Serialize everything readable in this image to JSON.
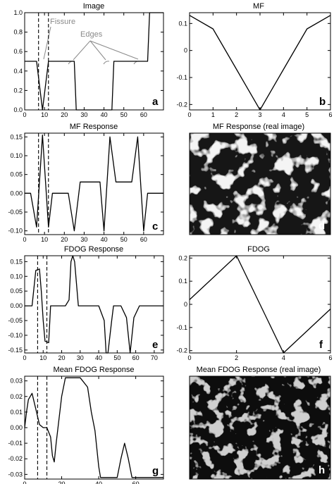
{
  "figure": {
    "annotations": {
      "fissure": "Fissure",
      "edges": "Edges"
    }
  },
  "chart_data": [
    {
      "id": "a",
      "type": "line",
      "title": "Image",
      "letter": "a",
      "xlim": [
        0,
        70
      ],
      "ylim": [
        0,
        1.0
      ],
      "xticks": [
        0,
        10,
        20,
        30,
        40,
        50,
        60
      ],
      "yticks": [
        0.0,
        0.2,
        0.4,
        0.6,
        0.8,
        1.0
      ],
      "ytick_labels": [
        "0.0",
        "0.2",
        "0.4",
        "0.6",
        "0.8",
        "1.0"
      ],
      "vlines": [
        7,
        12
      ],
      "series": [
        {
          "x": [
            0,
            6,
            9,
            12,
            25,
            26,
            44,
            45,
            62,
            63,
            70
          ],
          "y": [
            0.5,
            0.5,
            0,
            0.5,
            0.5,
            0,
            0,
            0.5,
            0.5,
            1.0,
            1.0
          ]
        }
      ]
    },
    {
      "id": "b",
      "type": "line",
      "title": "MF",
      "letter": "b",
      "xlim": [
        0,
        6
      ],
      "ylim": [
        -0.22,
        0.14
      ],
      "xticks": [
        0,
        1,
        2,
        3,
        4,
        5,
        6
      ],
      "yticks": [
        -0.2,
        -0.1,
        0.0,
        0.1
      ],
      "ytick_labels": [
        "-0.2",
        "-0.1",
        "0",
        "0.1"
      ],
      "series": [
        {
          "x": [
            0,
            1,
            2,
            3,
            4,
            5,
            6
          ],
          "y": [
            0.13,
            0.08,
            -0.07,
            -0.22,
            -0.07,
            0.08,
            0.13
          ]
        }
      ]
    },
    {
      "id": "c",
      "type": "line",
      "title": "MF Response",
      "letter": "c",
      "xlim": [
        0,
        70
      ],
      "ylim": [
        -0.11,
        0.16
      ],
      "xticks": [
        0,
        10,
        20,
        30,
        40,
        50,
        60
      ],
      "yticks": [
        -0.1,
        -0.05,
        0.0,
        0.05,
        0.1,
        0.15
      ],
      "ytick_labels": [
        "-0.10",
        "-0.05",
        "0.00",
        "0.05",
        "0.10",
        "0.15"
      ],
      "vlines": [
        7,
        12
      ],
      "series": [
        {
          "x": [
            0,
            3,
            6,
            9,
            12,
            14,
            22,
            25,
            28,
            38,
            40,
            43,
            46,
            54,
            57,
            60,
            62,
            70
          ],
          "y": [
            0,
            0,
            -0.09,
            0.155,
            -0.09,
            0,
            0,
            -0.1,
            0.03,
            0.03,
            -0.1,
            0.15,
            0.03,
            0.03,
            0.15,
            -0.1,
            0,
            0
          ]
        }
      ]
    },
    {
      "id": "d",
      "type": "image",
      "title": "MF Response (real image)",
      "letter": "d"
    },
    {
      "id": "e",
      "type": "line",
      "title": "FDOG Response",
      "letter": "e",
      "xlim": [
        0,
        75
      ],
      "ylim": [
        -0.16,
        0.17
      ],
      "xticks": [
        0,
        10,
        20,
        30,
        40,
        50,
        60,
        70
      ],
      "yticks": [
        -0.15,
        -0.1,
        -0.05,
        0.0,
        0.05,
        0.1,
        0.15
      ],
      "ytick_labels": [
        "-0.15",
        "-0.10",
        "-0.05",
        "0.00",
        "0.05",
        "0.10",
        "0.15"
      ],
      "vlines": [
        7,
        12
      ],
      "series": [
        {
          "x": [
            0,
            4,
            6,
            8,
            9,
            10,
            11,
            13,
            14,
            16,
            22,
            24,
            25,
            26,
            27,
            29,
            40,
            43,
            44,
            45,
            47,
            48,
            52,
            55,
            57,
            59,
            62,
            75
          ],
          "y": [
            0,
            0,
            0.12,
            0.125,
            0.05,
            -0.05,
            -0.12,
            -0.125,
            0,
            0,
            0,
            0.02,
            0.15,
            0.17,
            0.15,
            0,
            0,
            -0.05,
            -0.16,
            -0.16,
            -0.05,
            0,
            0,
            -0.04,
            -0.16,
            -0.04,
            0,
            0
          ]
        }
      ]
    },
    {
      "id": "f",
      "type": "line",
      "title": "FDOG",
      "letter": "f",
      "xlim": [
        0,
        6
      ],
      "ylim": [
        -0.21,
        0.21
      ],
      "xticks": [
        0,
        2,
        4,
        6
      ],
      "yticks": [
        -0.2,
        -0.1,
        0.0,
        0.1,
        0.2
      ],
      "ytick_labels": [
        "-0.2",
        "-0.1",
        "0",
        "0.1",
        "0.2"
      ],
      "series": [
        {
          "x": [
            0,
            2,
            4,
            6
          ],
          "y": [
            0.02,
            0.21,
            -0.21,
            -0.02
          ]
        }
      ]
    },
    {
      "id": "g",
      "type": "line",
      "title": "Mean FDOG Response",
      "letter": "g",
      "xlim": [
        0,
        75
      ],
      "ylim": [
        -0.033,
        0.033
      ],
      "xticks": [
        0,
        20,
        40,
        60
      ],
      "yticks": [
        -0.03,
        -0.02,
        -0.01,
        0.0,
        0.01,
        0.02,
        0.03
      ],
      "ytick_labels": [
        "-0.03",
        "-0.02",
        "-0.01",
        "0.00",
        "0.01",
        "0.02",
        "0.03"
      ],
      "vlines": [
        7,
        12
      ],
      "series": [
        {
          "x": [
            0,
            1,
            2,
            4,
            6,
            8,
            10,
            12,
            14,
            15,
            16,
            17,
            20,
            22,
            24,
            30,
            34,
            36,
            38,
            40,
            41,
            42,
            50,
            52,
            54,
            56,
            58,
            75
          ],
          "y": [
            0,
            0.01,
            0.018,
            0.022,
            0.012,
            0.002,
            0,
            0,
            -0.006,
            -0.018,
            -0.022,
            -0.01,
            0.02,
            0.032,
            0.032,
            0.032,
            0.026,
            0.01,
            -0.002,
            -0.025,
            -0.032,
            -0.032,
            -0.032,
            -0.02,
            -0.01,
            -0.02,
            -0.032,
            -0.032
          ]
        }
      ]
    },
    {
      "id": "h",
      "type": "image",
      "title": "Mean FDOG Response (real image)",
      "letter": "h"
    }
  ]
}
